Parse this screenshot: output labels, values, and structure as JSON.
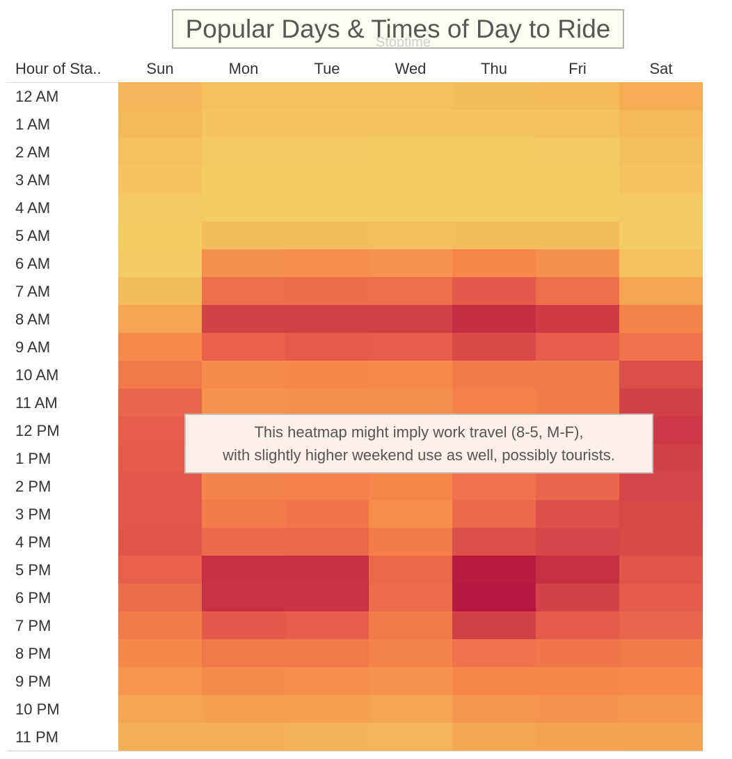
{
  "chart_data": {
    "type": "heatmap",
    "title": "Popular Days & Times of Day to Ride",
    "column_group_label": "Stoptime",
    "row_header": "Hour of Sta..",
    "columns": [
      "Sun",
      "Mon",
      "Tue",
      "Wed",
      "Thu",
      "Fri",
      "Sat"
    ],
    "rows": [
      "12 AM",
      "1 AM",
      "2 AM",
      "3 AM",
      "4 AM",
      "5 AM",
      "6 AM",
      "7 AM",
      "8 AM",
      "9 AM",
      "10 AM",
      "11 AM",
      "12 PM",
      "1 PM",
      "2 PM",
      "3 PM",
      "4 PM",
      "5 PM",
      "6 PM",
      "7 PM",
      "8 PM",
      "9 PM",
      "10 PM",
      "11 PM"
    ],
    "values": [
      [
        0.16,
        0.1,
        0.1,
        0.1,
        0.12,
        0.13,
        0.2
      ],
      [
        0.14,
        0.07,
        0.07,
        0.07,
        0.07,
        0.08,
        0.14
      ],
      [
        0.1,
        0.04,
        0.04,
        0.03,
        0.03,
        0.04,
        0.11
      ],
      [
        0.07,
        0.03,
        0.03,
        0.03,
        0.03,
        0.03,
        0.08
      ],
      [
        0.04,
        0.03,
        0.03,
        0.03,
        0.03,
        0.03,
        0.05
      ],
      [
        0.03,
        0.12,
        0.12,
        0.11,
        0.12,
        0.12,
        0.04
      ],
      [
        0.04,
        0.34,
        0.36,
        0.33,
        0.4,
        0.34,
        0.1
      ],
      [
        0.12,
        0.52,
        0.53,
        0.52,
        0.63,
        0.52,
        0.24
      ],
      [
        0.24,
        0.74,
        0.75,
        0.75,
        0.85,
        0.77,
        0.41
      ],
      [
        0.38,
        0.6,
        0.62,
        0.61,
        0.7,
        0.61,
        0.5
      ],
      [
        0.47,
        0.37,
        0.39,
        0.38,
        0.45,
        0.45,
        0.68
      ],
      [
        0.57,
        0.33,
        0.34,
        0.34,
        0.42,
        0.44,
        0.75
      ],
      [
        0.61,
        0.33,
        0.34,
        0.34,
        0.42,
        0.45,
        0.78
      ],
      [
        0.62,
        0.33,
        0.35,
        0.34,
        0.43,
        0.48,
        0.74
      ],
      [
        0.64,
        0.41,
        0.42,
        0.4,
        0.5,
        0.57,
        0.72
      ],
      [
        0.64,
        0.46,
        0.48,
        0.36,
        0.55,
        0.67,
        0.71
      ],
      [
        0.65,
        0.55,
        0.56,
        0.44,
        0.68,
        0.72,
        0.7
      ],
      [
        0.6,
        0.83,
        0.83,
        0.56,
        0.97,
        0.84,
        0.65
      ],
      [
        0.53,
        0.82,
        0.82,
        0.54,
        1.0,
        0.74,
        0.62
      ],
      [
        0.46,
        0.63,
        0.61,
        0.47,
        0.75,
        0.62,
        0.57
      ],
      [
        0.39,
        0.47,
        0.46,
        0.41,
        0.5,
        0.48,
        0.46
      ],
      [
        0.32,
        0.37,
        0.36,
        0.33,
        0.4,
        0.4,
        0.38
      ],
      [
        0.24,
        0.27,
        0.27,
        0.24,
        0.31,
        0.33,
        0.31
      ],
      [
        0.18,
        0.18,
        0.17,
        0.16,
        0.22,
        0.25,
        0.26
      ]
    ],
    "colorscale": [
      "#f3d267",
      "#f5ac55",
      "#f6864a",
      "#e6604a",
      "#c93647",
      "#b4173f"
    ],
    "annotation": [
      "This heatmap might imply work travel (8-5, M-F),",
      "with slightly higher weekend use as well, possibly tourists."
    ]
  }
}
